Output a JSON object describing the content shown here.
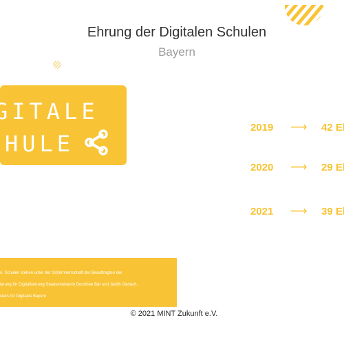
{
  "colors": {
    "accent": "#f8c435",
    "accent_light": "#f3dc8c"
  },
  "header": {
    "title": "Ehrung der Digitalen Schulen",
    "subtitle": "Bayern"
  },
  "logo": {
    "line1": "GITALE",
    "line2": "HULE",
    "icon": "share-icon"
  },
  "stats": [
    {
      "year": "2019",
      "arrow": "⟶",
      "count": "42 El"
    },
    {
      "year": "2020",
      "arrow": "⟶",
      "count": "29 El"
    },
    {
      "year": "2021",
      "arrow": "⟶",
      "count": "39 El"
    }
  ],
  "info": {
    "line1": "n. Schulen stehen unter der Schirmherrschaft der Beauftragten der",
    "line2": "ierung für Digitalisierung Staatsministerin Dorothee Bär und Judith Gerlach,",
    "line3": "sters für Digitales Bayern"
  },
  "footer": {
    "copyright": "© 2021 MINT Zukunft e.V."
  }
}
